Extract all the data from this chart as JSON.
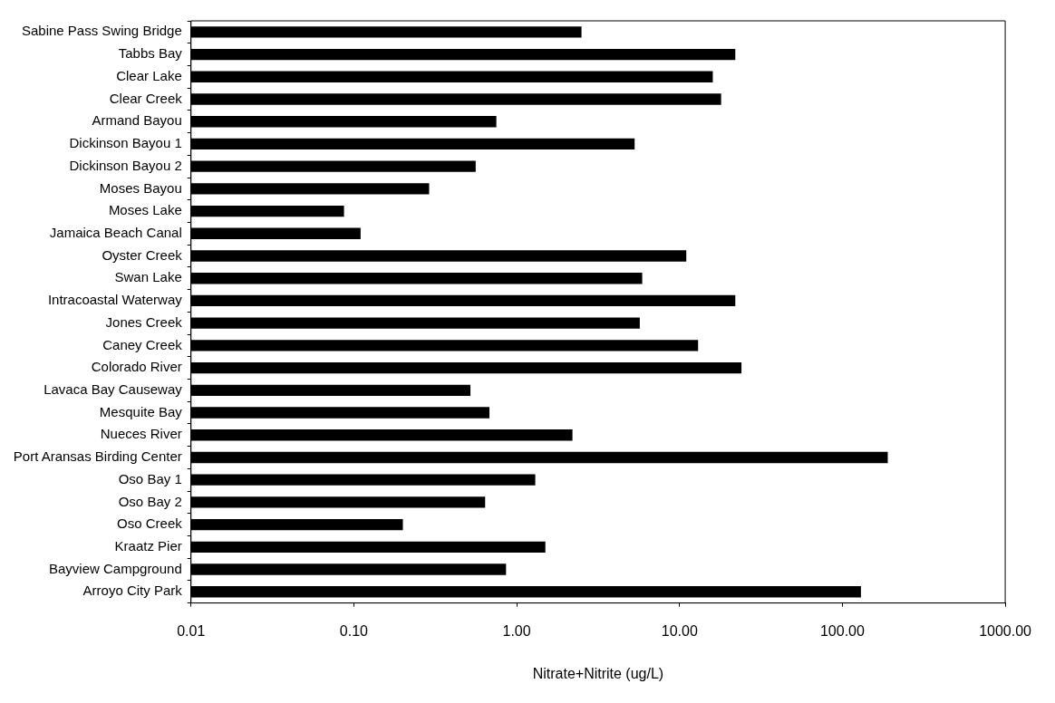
{
  "chart_data": {
    "type": "bar",
    "orientation": "horizontal",
    "xlabel": "Nitrate+Nitrite (ug/L)",
    "categories": [
      "Sabine Pass Swing Bridge",
      "Tabbs Bay",
      "Clear Lake",
      "Clear Creek",
      "Armand Bayou",
      "Dickinson Bayou 1",
      "Dickinson Bayou 2",
      "Moses Bayou",
      "Moses Lake",
      "Jamaica Beach Canal",
      "Oyster Creek",
      "Swan Lake",
      "Intracoastal Waterway",
      "Jones Creek",
      "Caney Creek",
      "Colorado River",
      "Lavaca Bay Causeway",
      "Mesquite Bay",
      "Nueces River",
      "Port Aransas Birding Center",
      "Oso Bay 1",
      "Oso Bay 2",
      "Oso Creek",
      "Kraatz Pier",
      "Bayview Campground",
      "Arroyo City Park"
    ],
    "values": [
      2.5,
      22,
      16,
      18,
      0.75,
      5.3,
      0.56,
      0.29,
      0.087,
      0.11,
      11,
      5.9,
      22,
      5.7,
      13,
      24,
      0.52,
      0.68,
      2.2,
      190,
      1.3,
      0.64,
      0.2,
      1.5,
      0.86,
      130
    ],
    "color": "#000000",
    "log": "x",
    "xlim": [
      0.01,
      1000
    ],
    "xticks": [
      {
        "value": 0.01,
        "label": "0.01"
      },
      {
        "value": 0.1,
        "label": "0.10"
      },
      {
        "value": 1,
        "label": "1.00"
      },
      {
        "value": 10,
        "label": "10.00"
      },
      {
        "value": 100,
        "label": "100.00"
      },
      {
        "value": 1000,
        "label": "1000.00"
      }
    ],
    "grid": false,
    "legend": false
  }
}
